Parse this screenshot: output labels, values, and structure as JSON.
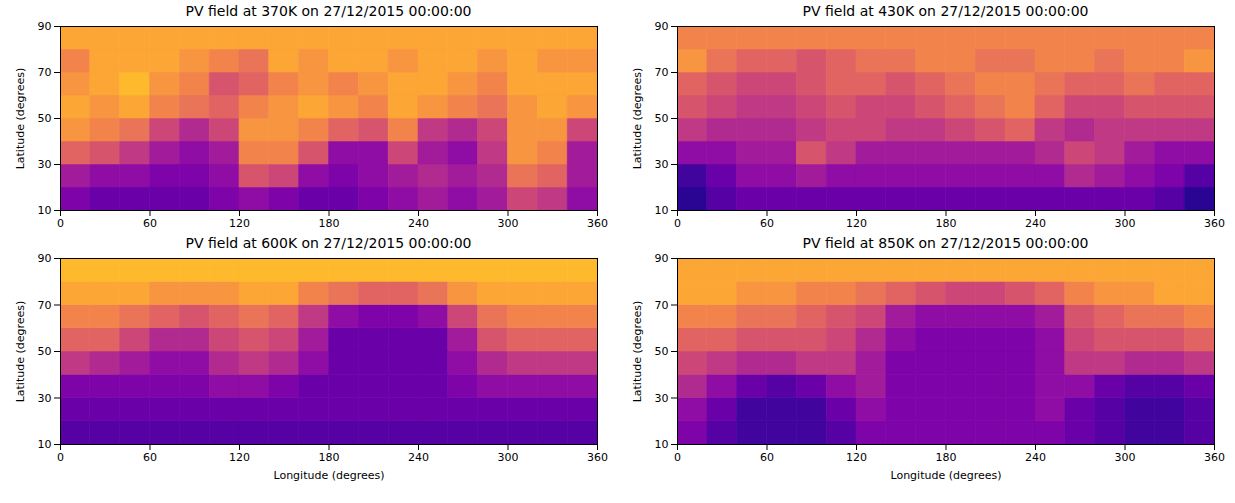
{
  "chart_data": [
    {
      "type": "heatmap",
      "title": "PV field at 370K on 27/12/2015 00:00:00",
      "ylabel": "Latitude (degrees)",
      "xlim": [
        0,
        360
      ],
      "ylim": [
        10,
        90
      ],
      "xticks": [
        0,
        60,
        120,
        180,
        240,
        300,
        360
      ],
      "yticks": [
        10,
        30,
        50,
        70,
        90
      ],
      "color": "plasma",
      "zlim": [
        0,
        1
      ],
      "lon_edges": [
        0,
        20,
        40,
        60,
        80,
        100,
        120,
        140,
        160,
        180,
        200,
        220,
        240,
        260,
        280,
        300,
        320,
        340,
        360
      ],
      "lat_edges": [
        10,
        20,
        30,
        40,
        50,
        60,
        70,
        80,
        90
      ],
      "cells": [
        [
          0.25,
          0.2,
          0.2,
          0.2,
          0.2,
          0.25,
          0.3,
          0.25,
          0.2,
          0.2,
          0.25,
          0.3,
          0.35,
          0.3,
          0.35,
          0.5,
          0.45,
          0.3
        ],
        [
          0.35,
          0.3,
          0.3,
          0.25,
          0.25,
          0.3,
          0.55,
          0.5,
          0.3,
          0.25,
          0.3,
          0.35,
          0.4,
          0.35,
          0.4,
          0.65,
          0.6,
          0.35
        ],
        [
          0.6,
          0.55,
          0.45,
          0.35,
          0.3,
          0.35,
          0.7,
          0.7,
          0.55,
          0.3,
          0.3,
          0.5,
          0.35,
          0.3,
          0.45,
          0.75,
          0.7,
          0.35
        ],
        [
          0.75,
          0.7,
          0.65,
          0.5,
          0.4,
          0.5,
          0.75,
          0.75,
          0.7,
          0.6,
          0.55,
          0.7,
          0.45,
          0.4,
          0.5,
          0.75,
          0.75,
          0.5
        ],
        [
          0.8,
          0.75,
          0.8,
          0.7,
          0.65,
          0.6,
          0.7,
          0.75,
          0.8,
          0.75,
          0.7,
          0.8,
          0.75,
          0.7,
          0.65,
          0.75,
          0.8,
          0.75
        ],
        [
          0.75,
          0.8,
          0.85,
          0.75,
          0.7,
          0.55,
          0.6,
          0.7,
          0.75,
          0.7,
          0.75,
          0.8,
          0.8,
          0.75,
          0.7,
          0.8,
          0.8,
          0.8
        ],
        [
          0.7,
          0.8,
          0.8,
          0.8,
          0.75,
          0.7,
          0.65,
          0.8,
          0.75,
          0.8,
          0.8,
          0.75,
          0.8,
          0.8,
          0.75,
          0.8,
          0.75,
          0.75
        ],
        [
          0.8,
          0.8,
          0.8,
          0.8,
          0.8,
          0.8,
          0.8,
          0.8,
          0.8,
          0.8,
          0.8,
          0.8,
          0.8,
          0.8,
          0.8,
          0.8,
          0.8,
          0.8
        ]
      ]
    },
    {
      "type": "heatmap",
      "title": "PV field at 430K on 27/12/2015 00:00:00",
      "ylabel": "Latitude (degrees)",
      "xlim": [
        0,
        360
      ],
      "ylim": [
        10,
        90
      ],
      "xticks": [
        0,
        60,
        120,
        180,
        240,
        300,
        360
      ],
      "yticks": [
        10,
        30,
        50,
        70,
        90
      ],
      "color": "plasma",
      "zlim": [
        0,
        1
      ],
      "lon_edges": [
        0,
        20,
        40,
        60,
        80,
        100,
        120,
        140,
        160,
        180,
        200,
        220,
        240,
        260,
        280,
        300,
        320,
        340,
        360
      ],
      "lat_edges": [
        10,
        20,
        30,
        40,
        50,
        60,
        70,
        80,
        90
      ],
      "cells": [
        [
          0.05,
          0.15,
          0.2,
          0.2,
          0.2,
          0.2,
          0.2,
          0.2,
          0.2,
          0.2,
          0.2,
          0.2,
          0.2,
          0.2,
          0.2,
          0.2,
          0.15,
          0.05
        ],
        [
          0.1,
          0.2,
          0.3,
          0.3,
          0.35,
          0.3,
          0.3,
          0.3,
          0.3,
          0.3,
          0.3,
          0.3,
          0.3,
          0.4,
          0.35,
          0.3,
          0.25,
          0.15
        ],
        [
          0.3,
          0.3,
          0.35,
          0.35,
          0.55,
          0.45,
          0.35,
          0.35,
          0.35,
          0.35,
          0.35,
          0.35,
          0.4,
          0.5,
          0.45,
          0.35,
          0.3,
          0.3
        ],
        [
          0.45,
          0.4,
          0.4,
          0.4,
          0.45,
          0.5,
          0.5,
          0.45,
          0.45,
          0.5,
          0.55,
          0.6,
          0.45,
          0.4,
          0.45,
          0.45,
          0.45,
          0.45
        ],
        [
          0.55,
          0.5,
          0.45,
          0.45,
          0.5,
          0.55,
          0.5,
          0.5,
          0.55,
          0.6,
          0.65,
          0.7,
          0.6,
          0.5,
          0.5,
          0.55,
          0.55,
          0.55
        ],
        [
          0.6,
          0.55,
          0.5,
          0.5,
          0.55,
          0.6,
          0.6,
          0.55,
          0.6,
          0.65,
          0.7,
          0.7,
          0.65,
          0.6,
          0.6,
          0.65,
          0.6,
          0.6
        ],
        [
          0.75,
          0.65,
          0.6,
          0.6,
          0.55,
          0.6,
          0.65,
          0.65,
          0.7,
          0.7,
          0.65,
          0.65,
          0.7,
          0.7,
          0.65,
          0.7,
          0.7,
          0.75
        ],
        [
          0.7,
          0.7,
          0.7,
          0.7,
          0.7,
          0.7,
          0.7,
          0.7,
          0.7,
          0.7,
          0.7,
          0.7,
          0.7,
          0.7,
          0.7,
          0.7,
          0.7,
          0.7
        ]
      ]
    },
    {
      "type": "heatmap",
      "title": "PV field at 600K on 27/12/2015 00:00:00",
      "xlabel": "Longitude (degrees)",
      "ylabel": "Latitude (degrees)",
      "xlim": [
        0,
        360
      ],
      "ylim": [
        10,
        90
      ],
      "xticks": [
        0,
        60,
        120,
        180,
        240,
        300,
        360
      ],
      "yticks": [
        10,
        30,
        50,
        70,
        90
      ],
      "color": "plasma",
      "zlim": [
        0,
        1
      ],
      "lon_edges": [
        0,
        20,
        40,
        60,
        80,
        100,
        120,
        140,
        160,
        180,
        200,
        220,
        240,
        260,
        280,
        300,
        320,
        340,
        360
      ],
      "lat_edges": [
        10,
        20,
        30,
        40,
        50,
        60,
        70,
        80,
        90
      ],
      "cells": [
        [
          0.15,
          0.15,
          0.15,
          0.15,
          0.15,
          0.15,
          0.15,
          0.15,
          0.15,
          0.15,
          0.15,
          0.15,
          0.15,
          0.15,
          0.15,
          0.15,
          0.15,
          0.15
        ],
        [
          0.2,
          0.2,
          0.2,
          0.2,
          0.2,
          0.2,
          0.2,
          0.2,
          0.2,
          0.2,
          0.2,
          0.2,
          0.2,
          0.2,
          0.2,
          0.2,
          0.2,
          0.2
        ],
        [
          0.25,
          0.25,
          0.25,
          0.25,
          0.25,
          0.3,
          0.3,
          0.25,
          0.2,
          0.2,
          0.2,
          0.2,
          0.2,
          0.25,
          0.3,
          0.3,
          0.3,
          0.3
        ],
        [
          0.45,
          0.4,
          0.35,
          0.3,
          0.3,
          0.4,
          0.45,
          0.4,
          0.3,
          0.2,
          0.2,
          0.2,
          0.2,
          0.3,
          0.4,
          0.45,
          0.45,
          0.45
        ],
        [
          0.6,
          0.6,
          0.5,
          0.4,
          0.4,
          0.5,
          0.55,
          0.5,
          0.35,
          0.2,
          0.2,
          0.2,
          0.2,
          0.35,
          0.55,
          0.6,
          0.6,
          0.6
        ],
        [
          0.7,
          0.7,
          0.65,
          0.6,
          0.55,
          0.6,
          0.65,
          0.6,
          0.45,
          0.3,
          0.25,
          0.25,
          0.3,
          0.5,
          0.65,
          0.7,
          0.7,
          0.7
        ],
        [
          0.8,
          0.8,
          0.8,
          0.75,
          0.75,
          0.75,
          0.8,
          0.8,
          0.7,
          0.65,
          0.6,
          0.6,
          0.65,
          0.75,
          0.8,
          0.8,
          0.8,
          0.8
        ],
        [
          0.85,
          0.85,
          0.85,
          0.85,
          0.85,
          0.85,
          0.85,
          0.85,
          0.85,
          0.85,
          0.85,
          0.85,
          0.85,
          0.85,
          0.85,
          0.85,
          0.85,
          0.85
        ]
      ]
    },
    {
      "type": "heatmap",
      "title": "PV field at 850K on 27/12/2015 00:00:00",
      "xlabel": "Longitude (degrees)",
      "ylabel": "Latitude (degrees)",
      "xlim": [
        0,
        360
      ],
      "ylim": [
        10,
        90
      ],
      "xticks": [
        0,
        60,
        120,
        180,
        240,
        300,
        360
      ],
      "yticks": [
        10,
        30,
        50,
        70,
        90
      ],
      "color": "plasma",
      "zlim": [
        0,
        1
      ],
      "lon_edges": [
        0,
        20,
        40,
        60,
        80,
        100,
        120,
        140,
        160,
        180,
        200,
        220,
        240,
        260,
        280,
        300,
        320,
        340,
        360
      ],
      "lat_edges": [
        10,
        20,
        30,
        40,
        50,
        60,
        70,
        80,
        90
      ],
      "cells": [
        [
          0.25,
          0.15,
          0.1,
          0.1,
          0.1,
          0.15,
          0.25,
          0.25,
          0.25,
          0.25,
          0.25,
          0.25,
          0.25,
          0.2,
          0.15,
          0.1,
          0.1,
          0.15
        ],
        [
          0.3,
          0.2,
          0.1,
          0.1,
          0.1,
          0.2,
          0.3,
          0.25,
          0.25,
          0.25,
          0.25,
          0.25,
          0.3,
          0.2,
          0.15,
          0.1,
          0.1,
          0.15
        ],
        [
          0.4,
          0.3,
          0.2,
          0.15,
          0.2,
          0.3,
          0.35,
          0.25,
          0.25,
          0.25,
          0.25,
          0.25,
          0.3,
          0.3,
          0.2,
          0.15,
          0.15,
          0.2
        ],
        [
          0.5,
          0.45,
          0.4,
          0.4,
          0.45,
          0.45,
          0.35,
          0.25,
          0.25,
          0.25,
          0.25,
          0.25,
          0.3,
          0.45,
          0.45,
          0.4,
          0.4,
          0.45
        ],
        [
          0.6,
          0.6,
          0.55,
          0.55,
          0.55,
          0.5,
          0.4,
          0.3,
          0.25,
          0.25,
          0.25,
          0.25,
          0.3,
          0.5,
          0.55,
          0.55,
          0.55,
          0.6
        ],
        [
          0.7,
          0.7,
          0.65,
          0.65,
          0.6,
          0.55,
          0.5,
          0.35,
          0.3,
          0.3,
          0.3,
          0.3,
          0.35,
          0.55,
          0.6,
          0.65,
          0.65,
          0.7
        ],
        [
          0.8,
          0.8,
          0.75,
          0.75,
          0.7,
          0.7,
          0.65,
          0.6,
          0.55,
          0.5,
          0.5,
          0.55,
          0.6,
          0.7,
          0.75,
          0.75,
          0.8,
          0.8
        ],
        [
          0.8,
          0.8,
          0.8,
          0.8,
          0.8,
          0.8,
          0.8,
          0.8,
          0.8,
          0.8,
          0.8,
          0.8,
          0.8,
          0.8,
          0.8,
          0.8,
          0.8,
          0.8
        ]
      ]
    }
  ]
}
